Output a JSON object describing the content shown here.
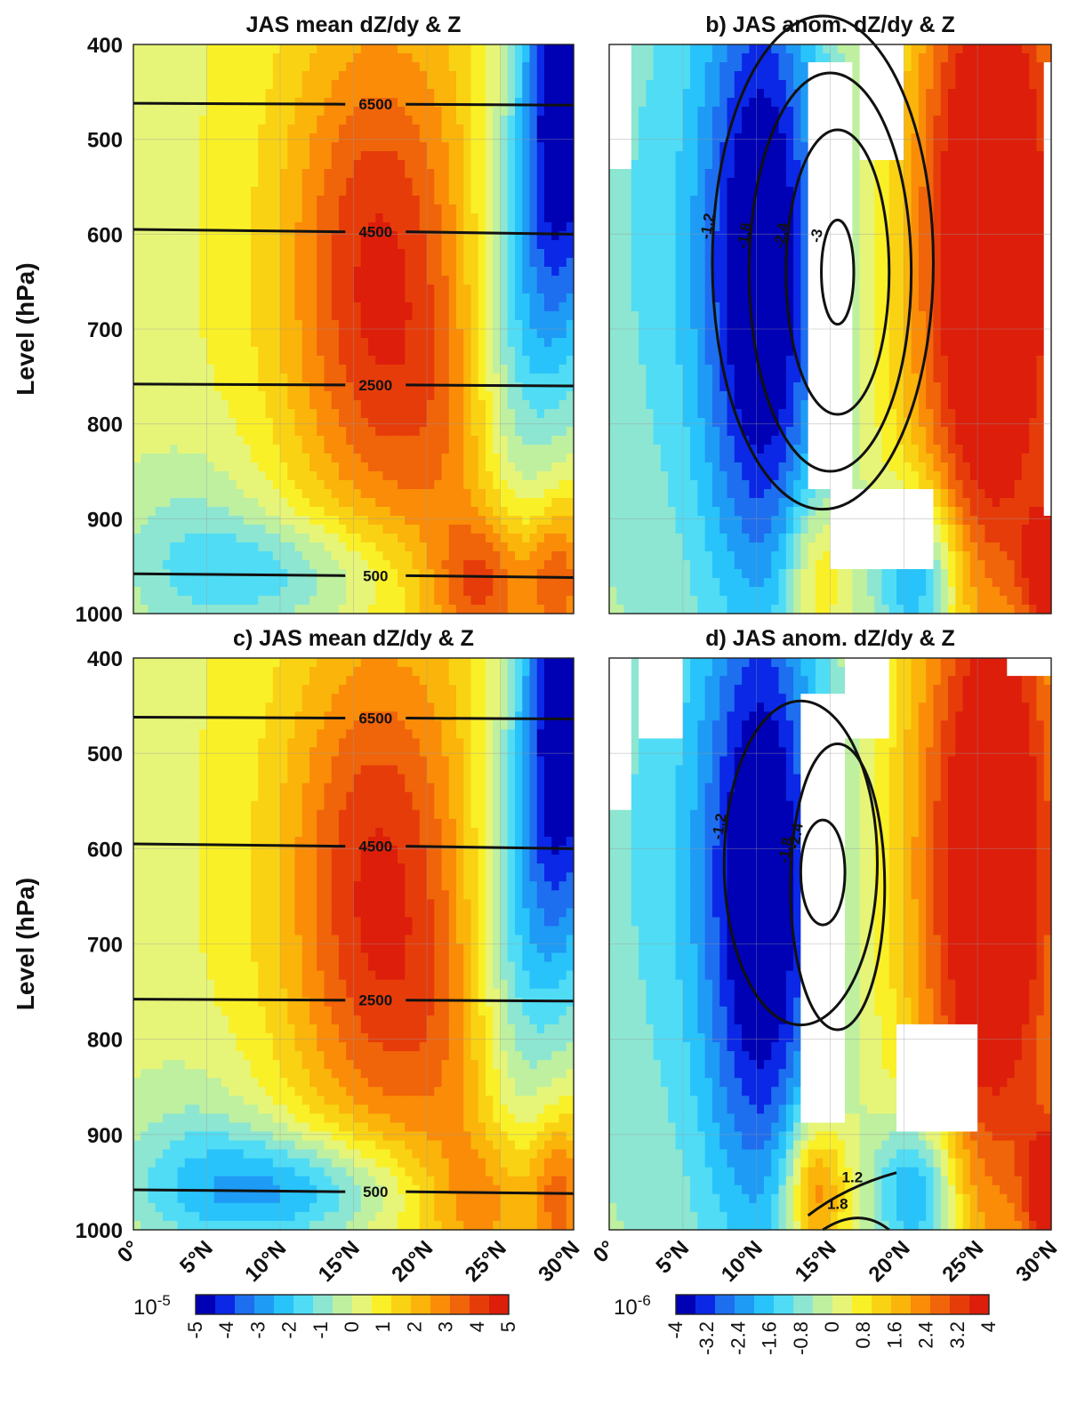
{
  "colors": {
    "jet": [
      "#0000b4",
      "#0a28e6",
      "#1e6ef0",
      "#1e9bf5",
      "#28c3fa",
      "#50dcf5",
      "#8ce6d2",
      "#bef0a0",
      "#e6f578",
      "#faf028",
      "#fad214",
      "#fab40a",
      "#fa8c08",
      "#f0640a",
      "#e63c0a",
      "#dc1e0a"
    ]
  },
  "chart_data": [
    {
      "id": "a",
      "type": "heatmap",
      "title": "JAS mean dZ/dy & Z",
      "ylabel": "Level (hPa)",
      "xlim": [
        0,
        30
      ],
      "ylim": [
        1000,
        400
      ],
      "yticks": [
        "400",
        "500",
        "600",
        "700",
        "800",
        "900",
        "1000"
      ],
      "xticks": [],
      "field": "mean",
      "contours": [
        {
          "label": "6500",
          "value": 6500
        },
        {
          "label": "4500",
          "value": 4500
        },
        {
          "label": "2500",
          "value": 2500
        },
        {
          "label": "500",
          "value": 500
        }
      ]
    },
    {
      "id": "b",
      "type": "heatmap",
      "title": "b) JAS anom. dZ/dy  & Z",
      "ylabel": "",
      "xlim": [
        0,
        30
      ],
      "ylim": [
        1000,
        400
      ],
      "yticks": [],
      "xticks": [],
      "field": "anom",
      "contours": [
        {
          "label": "-1.2",
          "value": -1.2
        },
        {
          "label": "-1.8",
          "value": -1.8
        },
        {
          "label": "-2.4",
          "value": -2.4
        },
        {
          "label": "-3",
          "value": -3
        }
      ]
    },
    {
      "id": "c",
      "type": "heatmap",
      "title": "c) JAS mean dZ/dy & Z",
      "ylabel": "Level (hPa)",
      "xlim": [
        0,
        30
      ],
      "ylim": [
        1000,
        400
      ],
      "yticks": [
        "400",
        "500",
        "600",
        "700",
        "800",
        "900",
        "1000"
      ],
      "xticks": [
        "0°",
        "5°N",
        "10°N",
        "15°N",
        "20°N",
        "25°N",
        "30°N"
      ],
      "field": "mean",
      "contours": [
        {
          "label": "6500",
          "value": 6500
        },
        {
          "label": "4500",
          "value": 4500
        },
        {
          "label": "2500",
          "value": 2500
        },
        {
          "label": "500",
          "value": 500
        }
      ]
    },
    {
      "id": "d",
      "type": "heatmap",
      "title": "d) JAS anom. dZ/dy & Z",
      "ylabel": "",
      "xlim": [
        0,
        30
      ],
      "ylim": [
        1000,
        400
      ],
      "yticks": [],
      "xticks": [
        "0°",
        "5°N",
        "10°N",
        "15°N",
        "20°N",
        "25°N",
        "30°N"
      ],
      "field": "anom",
      "contours": [
        {
          "label": "-1.2",
          "value": -1.2
        },
        {
          "label": "-1.8",
          "value": -1.8
        },
        {
          "label": "-2.4",
          "value": -2.4
        },
        {
          "label": "1.2",
          "value": 1.2
        },
        {
          "label": "1.8",
          "value": 1.8
        }
      ]
    }
  ],
  "colorbars": [
    {
      "exponent_base": "10",
      "exponent": "-5",
      "range": [
        -5,
        5
      ],
      "ticks": [
        "-5",
        "-4",
        "-3",
        "-2",
        "-1",
        "0",
        "1",
        "2",
        "3",
        "4",
        "5"
      ]
    },
    {
      "exponent_base": "10",
      "exponent": "-6",
      "range": [
        -4,
        4
      ],
      "ticks": [
        "-4",
        "-3.2",
        "-2.4",
        "-1.6",
        "-0.8",
        "0",
        "0.8",
        "1.6",
        "2.4",
        "3.2",
        "4"
      ]
    }
  ]
}
